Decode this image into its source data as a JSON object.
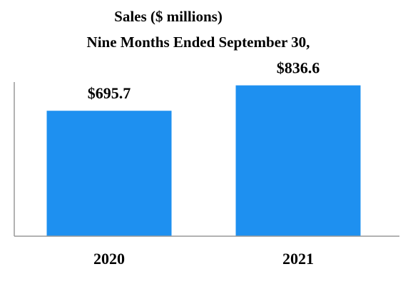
{
  "chart_data": {
    "type": "bar",
    "title": "Sales ($ millions)",
    "subtitle": "Nine Months Ended September 30,",
    "categories": [
      "2020",
      "2021"
    ],
    "values": [
      695.7,
      836.6
    ],
    "value_labels": [
      "$695.7",
      "$836.6"
    ],
    "xlabel": "",
    "ylabel": "",
    "ylim": [
      0,
      1310
    ],
    "grid": false,
    "legend": "none",
    "bar_color": "#1e90f0",
    "axis_color": "#999999"
  }
}
